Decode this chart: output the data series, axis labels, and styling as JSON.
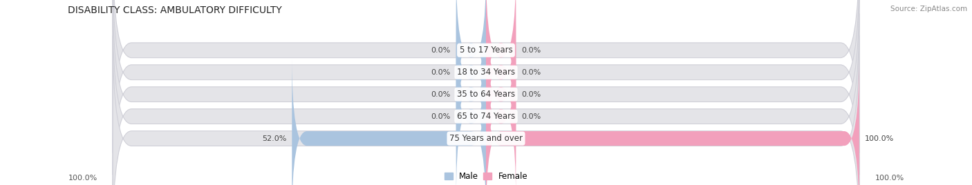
{
  "title": "DISABILITY CLASS: AMBULATORY DIFFICULTY",
  "source": "Source: ZipAtlas.com",
  "categories": [
    "5 to 17 Years",
    "18 to 34 Years",
    "35 to 64 Years",
    "65 to 74 Years",
    "75 Years and over"
  ],
  "male_values": [
    0.0,
    0.0,
    0.0,
    0.0,
    52.0
  ],
  "female_values": [
    0.0,
    0.0,
    0.0,
    0.0,
    100.0
  ],
  "male_color": "#aac4df",
  "female_color": "#f2a0bc",
  "bar_bg_color": "#e4e4e8",
  "bar_bg_color2": "#ededf0",
  "bar_outline_color": "#d0d0d8",
  "title_fontsize": 10,
  "label_fontsize": 8.5,
  "axis_max": 100.0,
  "min_display": 8.0,
  "bottom_left_label": "100.0%",
  "bottom_right_label": "100.0%",
  "fig_width": 14.06,
  "fig_height": 2.68
}
